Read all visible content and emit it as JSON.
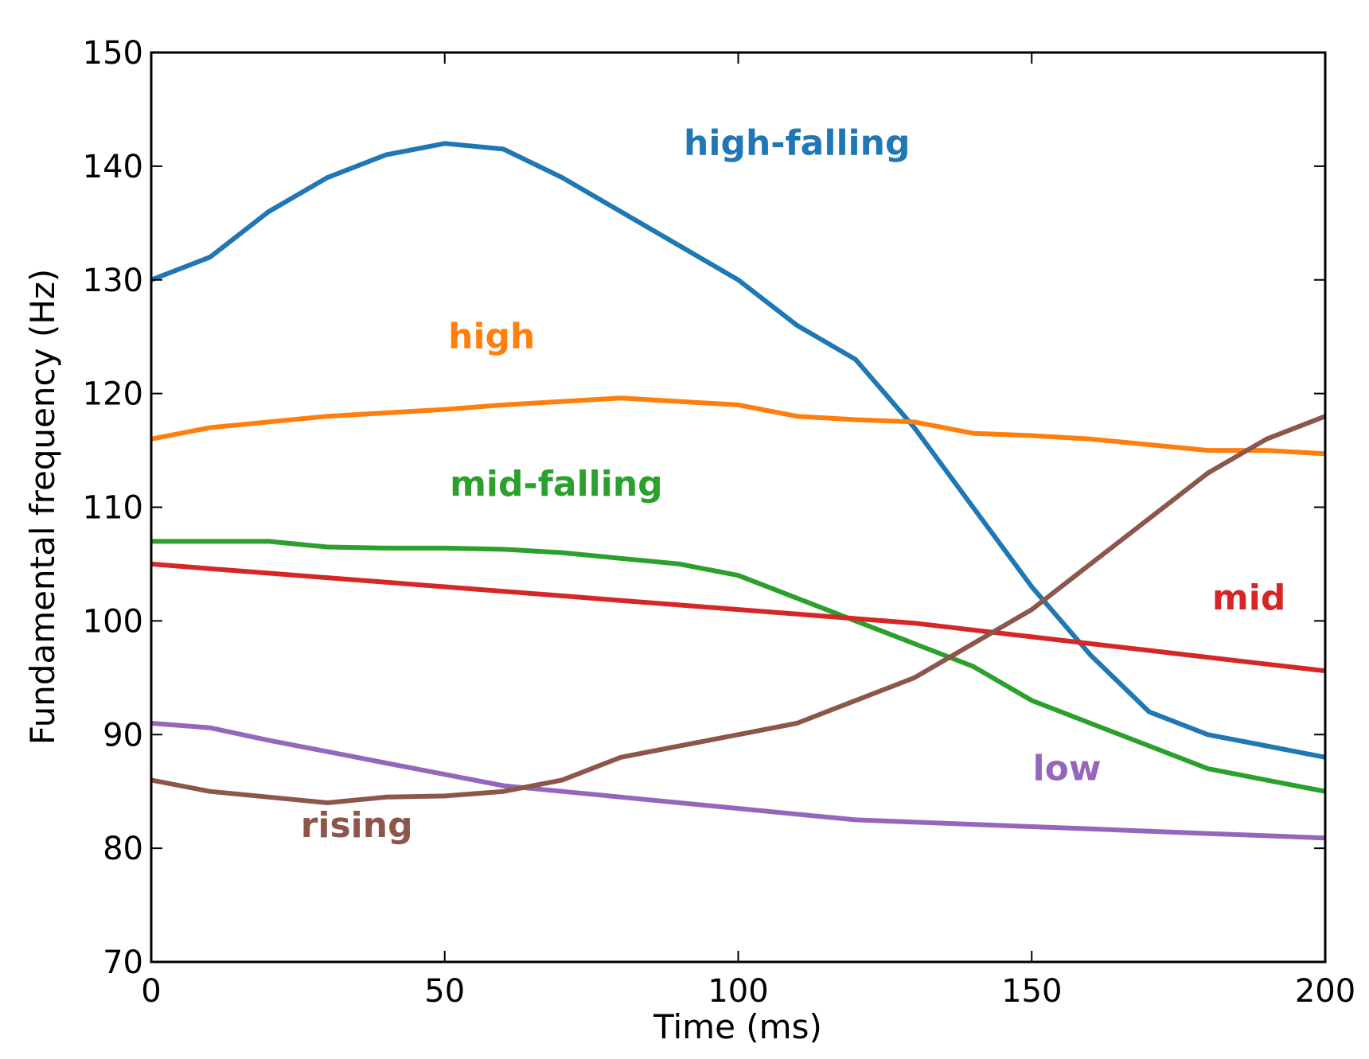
{
  "chart_data": {
    "type": "line",
    "title": "",
    "xlabel": "Time (ms)",
    "ylabel": "Fundamental frequency (Hz)",
    "xlim": [
      0,
      200
    ],
    "ylim": [
      70,
      150
    ],
    "xticks": [
      0,
      50,
      100,
      150,
      200
    ],
    "yticks": [
      70,
      80,
      90,
      100,
      110,
      120,
      130,
      140,
      150
    ],
    "grid": false,
    "x": [
      0,
      10,
      20,
      30,
      40,
      50,
      60,
      70,
      80,
      90,
      100,
      110,
      120,
      130,
      140,
      150,
      160,
      170,
      180,
      190,
      200
    ],
    "series": [
      {
        "name": "high-falling",
        "color": "#1f77b4",
        "label_at": [
          110,
          141
        ],
        "values": [
          130,
          132,
          136,
          139,
          141,
          142,
          141.5,
          139,
          136,
          133,
          130,
          126,
          123,
          117,
          110,
          103,
          97,
          92,
          90,
          89,
          88
        ]
      },
      {
        "name": "high",
        "color": "#ff7f0e",
        "label_at": [
          58,
          124
        ],
        "values": [
          116,
          117,
          117.5,
          118,
          118.3,
          118.6,
          119,
          119.3,
          119.6,
          119.3,
          119,
          118,
          117.7,
          117.5,
          116.5,
          116.3,
          116,
          115.5,
          115,
          115,
          114.7
        ]
      },
      {
        "name": "mid-falling",
        "color": "#2ca02c",
        "label_at": [
          69,
          111
        ],
        "values": [
          107,
          107,
          107,
          106.5,
          106.4,
          106.4,
          106.3,
          106,
          105.5,
          105,
          104,
          102,
          100,
          98,
          96,
          93,
          91,
          89,
          87,
          86,
          85
        ]
      },
      {
        "name": "mid",
        "color": "#d62728",
        "label_at": [
          187,
          101
        ],
        "values": [
          105,
          104.6,
          104.2,
          103.8,
          103.4,
          103,
          102.6,
          102.2,
          101.8,
          101.4,
          101,
          100.6,
          100.2,
          99.8,
          99.2,
          98.6,
          98,
          97.4,
          96.8,
          96.2,
          95.6
        ]
      },
      {
        "name": "low",
        "color": "#9467bd",
        "label_at": [
          156,
          86
        ],
        "values": [
          91,
          90.6,
          89.5,
          88.5,
          87.5,
          86.5,
          85.5,
          85,
          84.5,
          84,
          83.5,
          83,
          82.5,
          82.3,
          82.1,
          81.9,
          81.7,
          81.5,
          81.3,
          81.1,
          80.9
        ]
      },
      {
        "name": "rising",
        "color": "#8c564b",
        "label_at": [
          35,
          81
        ],
        "values": [
          86,
          85,
          84.5,
          84,
          84.5,
          84.6,
          85,
          86,
          88,
          89,
          90,
          91,
          93,
          95,
          98,
          101,
          105,
          109,
          113,
          116,
          118
        ]
      }
    ]
  }
}
